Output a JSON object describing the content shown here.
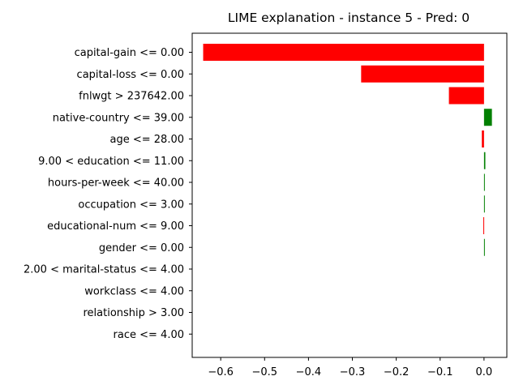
{
  "chart_data": {
    "type": "bar",
    "orientation": "horizontal",
    "title": "LIME explanation - instance 5 - Pred: 0",
    "xlabel": "",
    "ylabel": "",
    "categories": [
      "capital-gain <= 0.00",
      "capital-loss <= 0.00",
      "fnlwgt > 237642.00",
      "native-country <= 39.00",
      "age <= 28.00",
      "9.00 < education <= 11.00",
      "hours-per-week <= 40.00",
      "occupation <= 3.00",
      "educational-num <= 9.00",
      "gender <= 0.00",
      "2.00 < marital-status <= 4.00",
      "workclass <= 4.00",
      "relationship > 3.00",
      "race <= 4.00"
    ],
    "values": [
      -0.64,
      -0.28,
      -0.08,
      0.018,
      -0.005,
      0.003,
      0.0015,
      0.001,
      -0.0015,
      0.001,
      0.0,
      0.0,
      0.0,
      0.0
    ],
    "xlim": [
      -0.665,
      0.052
    ],
    "xticks": [
      -0.6,
      -0.5,
      -0.4,
      -0.3,
      -0.2,
      -0.1,
      0.0
    ],
    "xtick_labels": [
      "−0.6",
      "−0.5",
      "−0.4",
      "−0.3",
      "−0.2",
      "−0.1",
      "0.0"
    ],
    "grid": false,
    "colors": {
      "positive": "#008000",
      "negative": "#ff0000"
    }
  }
}
